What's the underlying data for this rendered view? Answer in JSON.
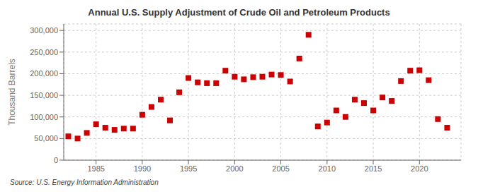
{
  "chart_data": {
    "type": "scatter",
    "title": "Annual U.S. Supply Adjustment of Crude Oil and Petroleum Products",
    "y_label": "Thousand Barrels",
    "annotations": [
      "Source: U.S. Energy Information Administration"
    ],
    "color": "#cc0000",
    "marker": "square",
    "grid": true,
    "xlim": [
      1981.5,
      2024.5
    ],
    "xticks": [
      1985,
      1990,
      1995,
      2000,
      2005,
      2010,
      2015,
      2020
    ],
    "ylim": [
      0,
      315000
    ],
    "yticks": [
      0,
      {
        "value": 50000,
        "label": "50,000"
      },
      {
        "value": 100000,
        "label": "100,000"
      },
      {
        "value": 150000,
        "label": "150,000"
      },
      {
        "value": 200000,
        "label": "200,000"
      },
      {
        "value": 250000,
        "label": "250,000"
      },
      {
        "value": 300000,
        "label": "300,000"
      }
    ],
    "x": [
      1982,
      1983,
      1984,
      1985,
      1986,
      1987,
      1988,
      1989,
      1990,
      1991,
      1992,
      1993,
      1994,
      1995,
      1996,
      1997,
      1998,
      1999,
      2000,
      2001,
      2002,
      2003,
      2004,
      2005,
      2006,
      2007,
      2008,
      2009,
      2010,
      2011,
      2012,
      2013,
      2014,
      2015,
      2016,
      2017,
      2018,
      2019,
      2020,
      2021,
      2022,
      2023
    ],
    "values": [
      55000,
      50000,
      63000,
      83000,
      75000,
      70000,
      73000,
      73000,
      105000,
      123000,
      140000,
      92000,
      157000,
      190000,
      180000,
      178000,
      178000,
      207000,
      193000,
      187000,
      192000,
      193000,
      198000,
      197000,
      182000,
      235000,
      290000,
      78000,
      87000,
      115000,
      100000,
      140000,
      132000,
      115000,
      145000,
      137000,
      183000,
      207000,
      208000,
      185000,
      95000,
      75000
    ]
  }
}
